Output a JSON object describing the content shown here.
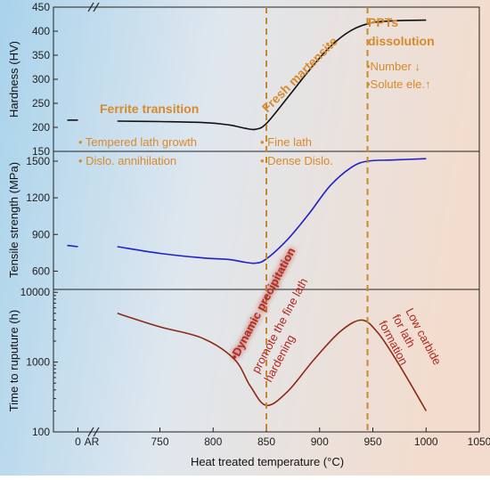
{
  "colors": {
    "annotation": "#d9892a",
    "precipitation": "#b1281d",
    "hardness_line": "#111111",
    "tensile_line": "#1f21c8",
    "rupture_line": "#8b2a14",
    "dashed_line": "#c8882e"
  },
  "chart_data": [
    {
      "type": "line",
      "panel": "hardness",
      "ylabel": "Hardness (HV)",
      "ylim": [
        150,
        450
      ],
      "yticks": [
        "150",
        "200",
        "250",
        "300",
        "350",
        "400",
        "450"
      ],
      "xlim": [
        650,
        1050
      ],
      "series": [
        {
          "x": [
            710,
            750,
            790,
            815,
            830,
            840,
            850,
            870,
            890,
            910,
            930,
            950,
            975,
            1000
          ],
          "y": [
            213,
            212,
            210,
            205,
            198,
            196,
            208,
            262,
            318,
            368,
            402,
            418,
            422,
            423
          ]
        },
        {
          "x": [
            663,
            673
          ],
          "y": [
            215,
            215
          ]
        }
      ]
    },
    {
      "type": "line",
      "panel": "tensile",
      "ylabel": "Tensile strength (MPa)",
      "ylim": [
        450,
        1580
      ],
      "yticks": [
        "600",
        "900",
        "1200",
        "1500"
      ],
      "xlim": [
        650,
        1050
      ],
      "series": [
        {
          "x": [
            710,
            750,
            790,
            815,
            830,
            840,
            850,
            870,
            890,
            910,
            930,
            945,
            970,
            1000
          ],
          "y": [
            800,
            745,
            708,
            695,
            672,
            665,
            700,
            860,
            1070,
            1300,
            1450,
            1500,
            1510,
            1520
          ]
        },
        {
          "x": [
            663,
            673
          ],
          "y": [
            810,
            800
          ]
        }
      ]
    },
    {
      "type": "line",
      "panel": "rupture",
      "ylabel": "Time to ruputure (h)",
      "yscale": "log",
      "ylim": [
        100,
        11000
      ],
      "yticks": [
        "100",
        "1000",
        "10000"
      ],
      "xlabel": "Heat treated temperature (°C)",
      "xticks": [
        "0",
        "AR",
        "750",
        "800",
        "850",
        "900",
        "950",
        "1000",
        "1050"
      ],
      "xlim": [
        650,
        1050
      ],
      "series": [
        {
          "x": [
            710,
            750,
            790,
            820,
            835,
            850,
            870,
            895,
            920,
            940,
            955,
            970,
            985,
            1000
          ],
          "y": [
            5000,
            3200,
            2200,
            1100,
            450,
            240,
            380,
            1100,
            2800,
            4000,
            2600,
            1200,
            500,
            200
          ]
        }
      ]
    }
  ],
  "annotations": {
    "ferrite_transition": "Ferrite transition",
    "fresh_martensite": "Fresh martensite",
    "ppts_dissolution_line1": "PPTs",
    "ppts_dissolution_line2": "dissolution",
    "number": "•Number ↓",
    "solute": "•Solute ele.↑",
    "tempered_lath": "• Tempered lath growth",
    "dislo_annihilation": "• Dislo. annihilation",
    "fine_lath": "• Fine lath",
    "dense_dislo": "• Dense Dislo.",
    "dynamic_precipitation": "•Dynamic precipitation",
    "promote_line1": "promote the fine lath",
    "promote_line2": "hardening",
    "low_carbide_line1": "Low carbide",
    "low_carbide_line2": "for lath",
    "low_carbide_line3": "formation"
  },
  "vlines_x": [
    850,
    945
  ]
}
